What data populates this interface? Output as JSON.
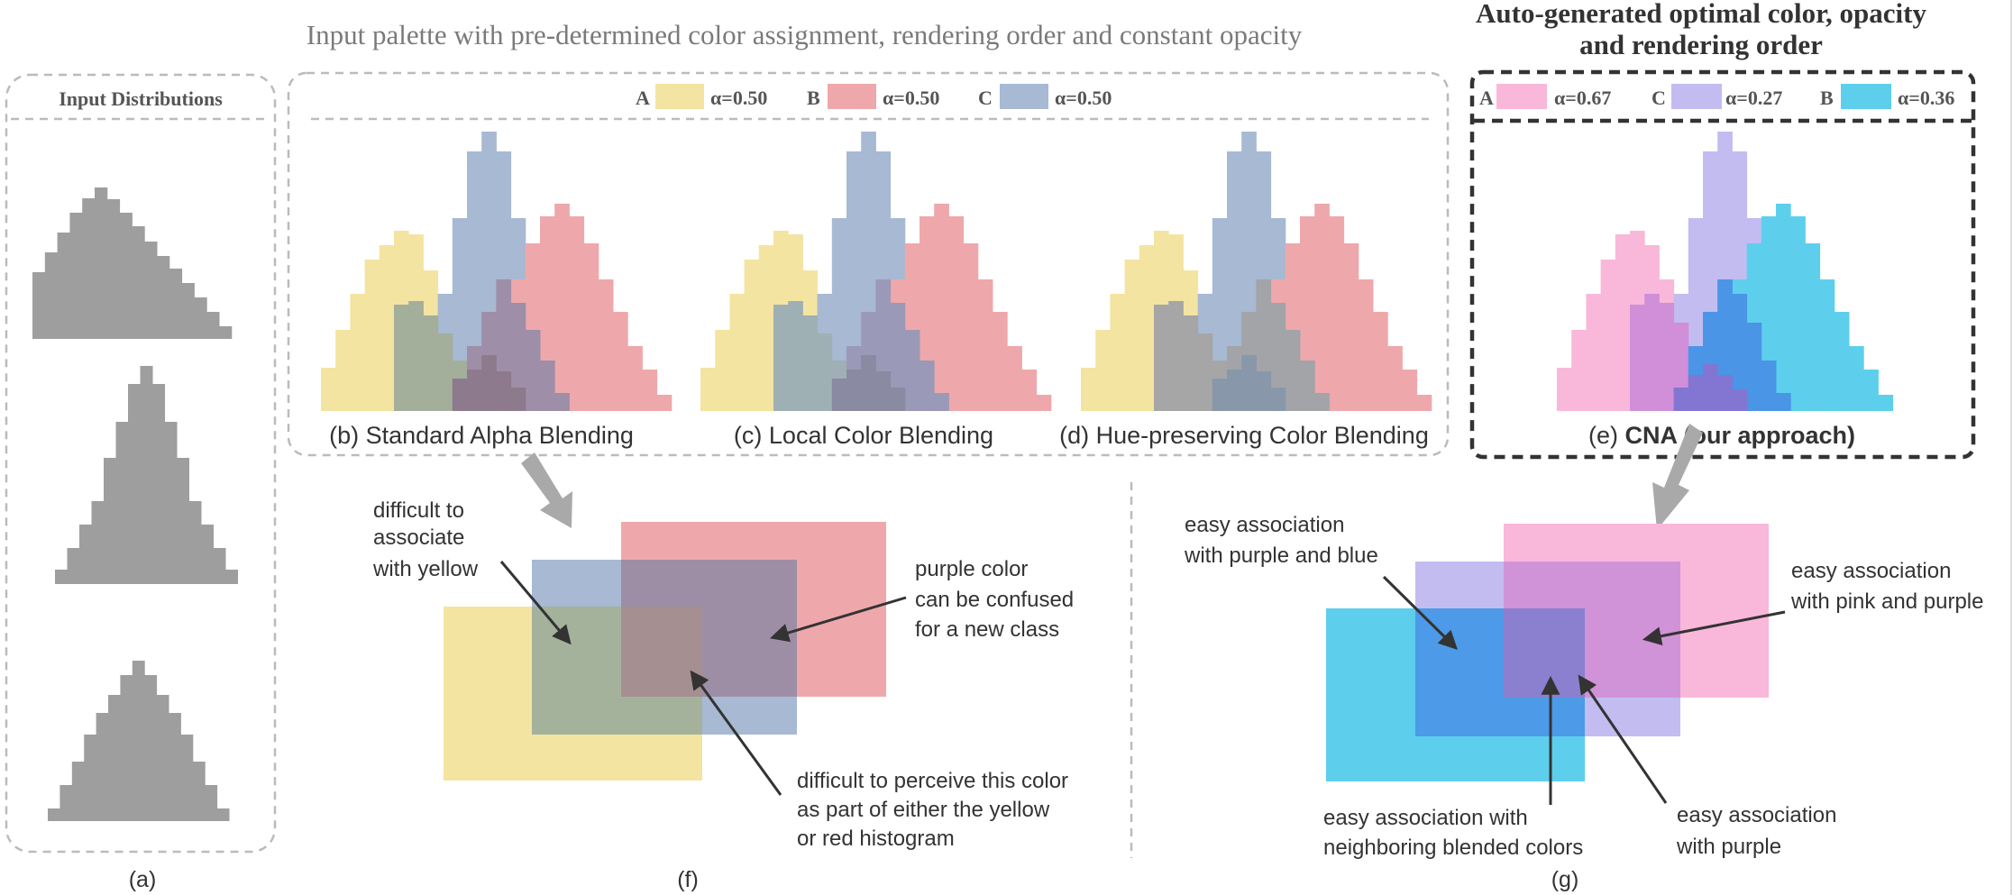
{
  "colors": {
    "gray": "#9e9e9e",
    "yellow": "#f4e4a1",
    "red": "#eea8ab",
    "blue_gray": "#a7b9d3",
    "pink": "#f9b8d9",
    "lavender": "#c3bcf1",
    "cyan": "#5dcfed",
    "dashed_border": "#bbbbbb",
    "dark_border": "#333333",
    "arrow_gray": "#a9a9a9",
    "text": "#333333"
  },
  "titles": {
    "input_palette": "Input palette with pre-determined color assignment, rendering order and constant opacity",
    "auto_line1": "Auto-generated optimal color, opacity",
    "auto_line2": "and rendering order"
  },
  "input_panel": {
    "title": "Input Distributions",
    "caption": "(a)"
  },
  "input_legend": [
    {
      "letter": "A",
      "color": "#f4e4a1",
      "alpha": "α=0.50"
    },
    {
      "letter": "B",
      "color": "#eea8ab",
      "alpha": "α=0.50"
    },
    {
      "letter": "C",
      "color": "#a7b9d3",
      "alpha": "α=0.50"
    }
  ],
  "output_legend": [
    {
      "letter": "A",
      "color": "#f9b8d9",
      "alpha": "α=0.67"
    },
    {
      "letter": "C",
      "color": "#c3bcf1",
      "alpha": "α=0.27"
    },
    {
      "letter": "B",
      "color": "#5dcfed",
      "alpha": "α=0.36"
    }
  ],
  "method_captions": {
    "b": "(b) Standard Alpha Blending",
    "c": "(c) Local Color Blending",
    "d": "(d) Hue-preserving Color Blending",
    "e_prefix": "(e) ",
    "e_bold": "CNA (our approach)"
  },
  "panel_f": {
    "caption": "(f)",
    "annotations": {
      "yellow_1": "difficult to",
      "yellow_2": "associate",
      "yellow_3": "with yellow",
      "purple_1": "purple color",
      "purple_2": "can be confused",
      "purple_3": "for a new class",
      "perceive_1": "difficult to perceive this color",
      "perceive_2": "as part of either the yellow",
      "perceive_3": "or red histogram"
    }
  },
  "panel_g": {
    "caption": "(g)",
    "annotations": {
      "pb_1": "easy association",
      "pb_2": "with purple and blue",
      "pp_1": "easy association",
      "pp_2": "with pink and purple",
      "nb_1": "easy association with",
      "nb_2": "neighboring blended colors",
      "pu_1": "easy association",
      "pu_2": "with purple"
    }
  }
}
